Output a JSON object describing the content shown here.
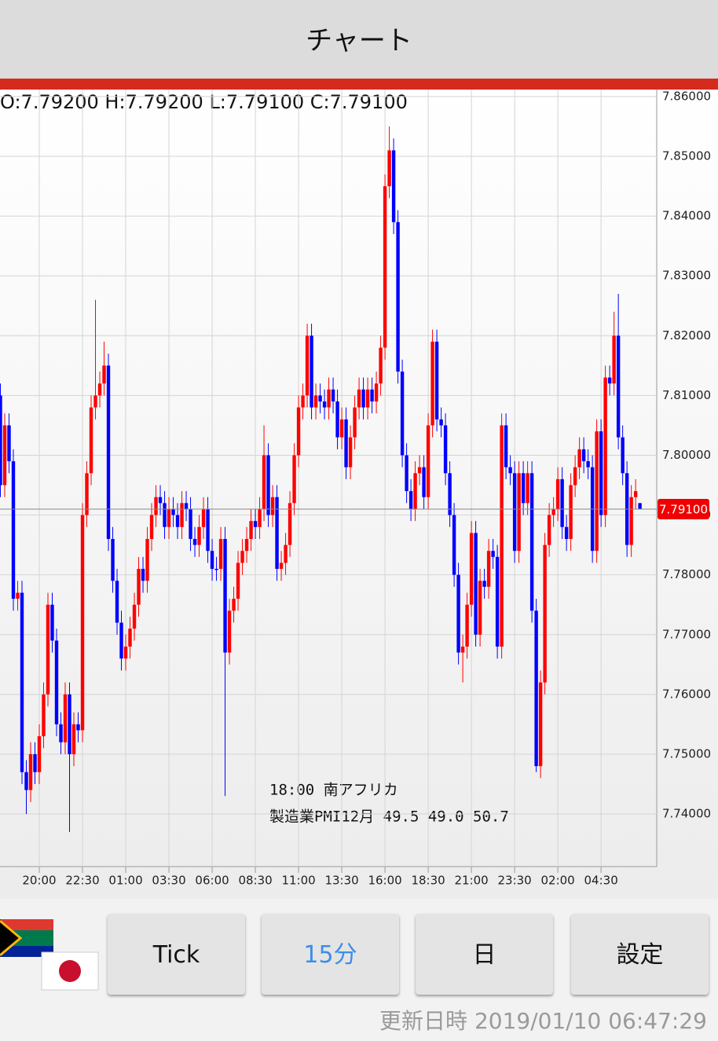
{
  "header": {
    "title": "チャート"
  },
  "chart_data": {
    "type": "candlestick",
    "ohlc_text": "O:7.79200 H:7.79200 L:7.79100 C:7.79100",
    "up_color": "#ff0000",
    "down_color": "#0000ff",
    "grid": true,
    "last_price": {
      "value": 7.791,
      "label": "7.79100"
    },
    "annotation": [
      "18:00 南アフリカ",
      "製造業PMI12月 49.5 49.0 50.7"
    ],
    "ylim": [
      7.7312,
      7.8613
    ],
    "yticks": [
      {
        "value": 7.74,
        "label": "7.74000"
      },
      {
        "value": 7.75,
        "label": "7.75000"
      },
      {
        "value": 7.76,
        "label": "7.76000"
      },
      {
        "value": 7.77,
        "label": "7.77000"
      },
      {
        "value": 7.78,
        "label": "7.78000"
      },
      {
        "value": 7.79,
        "label": "7.79000"
      },
      {
        "value": 7.8,
        "label": "7.80000"
      },
      {
        "value": 7.81,
        "label": "7.81000"
      },
      {
        "value": 7.82,
        "label": "7.82000"
      },
      {
        "value": 7.83,
        "label": "7.83000"
      },
      {
        "value": 7.84,
        "label": "7.84000"
      },
      {
        "value": 7.85,
        "label": "7.85000"
      },
      {
        "value": 7.86,
        "label": "7.86000"
      }
    ],
    "xlim": [
      -0.09,
      151.7
    ],
    "xticks": [
      {
        "value": 9,
        "label": "20:00"
      },
      {
        "value": 19,
        "label": "22:30"
      },
      {
        "value": 29,
        "label": "01:00"
      },
      {
        "value": 39,
        "label": "03:30"
      },
      {
        "value": 49,
        "label": "06:00"
      },
      {
        "value": 59,
        "label": "08:30"
      },
      {
        "value": 69,
        "label": "11:00"
      },
      {
        "value": 79,
        "label": "13:30"
      },
      {
        "value": 89,
        "label": "16:00"
      },
      {
        "value": 99,
        "label": "18:30"
      },
      {
        "value": 109,
        "label": "21:00"
      },
      {
        "value": 119,
        "label": "23:30"
      },
      {
        "value": 129,
        "label": "02:00"
      },
      {
        "value": 139,
        "label": "04:30"
      }
    ],
    "open": [
      7.81,
      7.795,
      7.805,
      7.799,
      7.776,
      7.777,
      7.747,
      7.744,
      7.75,
      7.747,
      7.753,
      7.76,
      7.775,
      7.769,
      7.755,
      7.752,
      7.76,
      7.75,
      7.755,
      7.754,
      7.79,
      7.797,
      7.808,
      7.81,
      7.812,
      7.815,
      7.786,
      7.779,
      7.772,
      7.766,
      7.768,
      7.771,
      7.775,
      7.781,
      7.779,
      7.786,
      7.79,
      7.793,
      7.792,
      7.788,
      7.791,
      7.79,
      7.788,
      7.792,
      7.791,
      7.786,
      7.785,
      7.788,
      7.791,
      7.784,
      7.781,
      7.781,
      7.786,
      7.767,
      7.774,
      7.776,
      7.782,
      7.784,
      7.786,
      7.789,
      7.788,
      7.791,
      7.8,
      7.79,
      7.793,
      7.781,
      7.782,
      7.785,
      7.792,
      7.8,
      7.808,
      7.81,
      7.82,
      7.808,
      7.81,
      7.809,
      7.808,
      7.811,
      7.809,
      7.803,
      7.806,
      7.798,
      7.803,
      7.808,
      7.811,
      7.808,
      7.811,
      7.809,
      7.812,
      7.818,
      7.845,
      7.851,
      7.839,
      7.814,
      7.8,
      7.794,
      7.791,
      7.797,
      7.798,
      7.793,
      7.805,
      7.819,
      7.806,
      7.805,
      7.797,
      7.79,
      7.78,
      7.767,
      7.768,
      7.775,
      7.787,
      7.77,
      7.779,
      7.778,
      7.784,
      7.783,
      7.768,
      7.805,
      7.798,
      7.797,
      7.784,
      7.797,
      7.792,
      7.797,
      7.774,
      7.748,
      7.762,
      7.785,
      7.79,
      7.791,
      7.796,
      7.788,
      7.786,
      7.795,
      7.798,
      7.801,
      7.799,
      7.798,
      7.784,
      7.804,
      7.79,
      7.813,
      7.812,
      7.82,
      7.803,
      7.797,
      7.785,
      7.793,
      7.792
    ],
    "high": [
      7.812,
      7.807,
      7.807,
      7.801,
      7.779,
      7.779,
      7.749,
      7.752,
      7.752,
      7.755,
      7.762,
      7.777,
      7.777,
      7.771,
      7.757,
      7.762,
      7.762,
      7.757,
      7.757,
      7.792,
      7.799,
      7.81,
      7.826,
      7.814,
      7.819,
      7.817,
      7.788,
      7.781,
      7.774,
      7.77,
      7.773,
      7.777,
      7.783,
      7.783,
      7.788,
      7.792,
      7.795,
      7.795,
      7.794,
      7.793,
      7.793,
      7.792,
      7.794,
      7.794,
      7.793,
      7.788,
      7.79,
      7.793,
      7.793,
      7.786,
      7.783,
      7.788,
      7.788,
      7.776,
      7.778,
      7.784,
      7.786,
      7.788,
      7.791,
      7.791,
      7.793,
      7.805,
      7.802,
      7.795,
      7.795,
      7.784,
      7.787,
      7.794,
      7.802,
      7.81,
      7.812,
      7.822,
      7.822,
      7.812,
      7.812,
      7.811,
      7.813,
      7.813,
      7.811,
      7.808,
      7.808,
      7.805,
      7.81,
      7.813,
      7.813,
      7.813,
      7.813,
      7.814,
      7.82,
      7.847,
      7.855,
      7.853,
      7.841,
      7.816,
      7.802,
      7.796,
      7.799,
      7.8,
      7.8,
      7.807,
      7.821,
      7.821,
      7.808,
      7.807,
      7.799,
      7.792,
      7.782,
      7.77,
      7.777,
      7.789,
      7.789,
      7.781,
      7.781,
      7.786,
      7.786,
      7.785,
      7.807,
      7.807,
      7.8,
      7.799,
      7.799,
      7.799,
      7.799,
      7.799,
      7.776,
      7.764,
      7.787,
      7.792,
      7.793,
      7.798,
      7.798,
      7.79,
      7.797,
      7.8,
      7.803,
      7.803,
      7.801,
      7.8,
      7.806,
      7.806,
      7.815,
      7.815,
      7.824,
      7.827,
      7.805,
      7.799,
      7.795,
      7.796,
      7.792
    ],
    "low": [
      7.793,
      7.793,
      7.797,
      7.774,
      7.774,
      7.745,
      7.74,
      7.742,
      7.745,
      7.745,
      7.751,
      7.758,
      7.767,
      7.753,
      7.75,
      7.75,
      7.737,
      7.748,
      7.752,
      7.752,
      7.788,
      7.795,
      7.806,
      7.808,
      7.81,
      7.784,
      7.777,
      7.77,
      7.764,
      7.764,
      7.766,
      7.769,
      7.773,
      7.777,
      7.777,
      7.784,
      7.788,
      7.79,
      7.786,
      7.786,
      7.788,
      7.786,
      7.786,
      7.789,
      7.784,
      7.783,
      7.783,
      7.786,
      7.782,
      7.779,
      7.779,
      7.779,
      7.743,
      7.765,
      7.772,
      7.774,
      7.78,
      7.782,
      7.784,
      7.786,
      7.786,
      7.789,
      7.788,
      7.788,
      7.779,
      7.779,
      7.78,
      7.783,
      7.79,
      7.798,
      7.806,
      7.808,
      7.806,
      7.806,
      7.807,
      7.806,
      7.806,
      7.807,
      7.801,
      7.801,
      7.796,
      7.796,
      7.801,
      7.806,
      7.806,
      7.806,
      7.807,
      7.807,
      7.81,
      7.816,
      7.843,
      7.837,
      7.812,
      7.798,
      7.792,
      7.789,
      7.789,
      7.795,
      7.791,
      7.791,
      7.803,
      7.804,
      7.803,
      7.795,
      7.788,
      7.778,
      7.765,
      7.762,
      7.766,
      7.773,
      7.768,
      7.768,
      7.776,
      7.776,
      7.781,
      7.766,
      7.766,
      7.796,
      7.795,
      7.782,
      7.782,
      7.79,
      7.79,
      7.772,
      7.747,
      7.746,
      7.76,
      7.783,
      7.788,
      7.789,
      7.786,
      7.784,
      7.784,
      7.793,
      7.796,
      7.797,
      7.796,
      7.782,
      7.782,
      7.788,
      7.788,
      7.81,
      7.81,
      7.801,
      7.795,
      7.783,
      7.783,
      7.791,
      7.791
    ],
    "close": [
      7.795,
      7.805,
      7.799,
      7.776,
      7.777,
      7.747,
      7.744,
      7.75,
      7.747,
      7.753,
      7.76,
      7.775,
      7.769,
      7.755,
      7.752,
      7.76,
      7.75,
      7.755,
      7.754,
      7.79,
      7.797,
      7.808,
      7.81,
      7.812,
      7.815,
      7.786,
      7.779,
      7.772,
      7.766,
      7.768,
      7.771,
      7.775,
      7.781,
      7.779,
      7.786,
      7.79,
      7.793,
      7.792,
      7.788,
      7.791,
      7.79,
      7.788,
      7.792,
      7.791,
      7.786,
      7.785,
      7.788,
      7.791,
      7.784,
      7.781,
      7.781,
      7.786,
      7.767,
      7.774,
      7.776,
      7.782,
      7.784,
      7.786,
      7.789,
      7.788,
      7.791,
      7.8,
      7.79,
      7.793,
      7.781,
      7.782,
      7.785,
      7.792,
      7.8,
      7.808,
      7.81,
      7.82,
      7.808,
      7.81,
      7.809,
      7.808,
      7.811,
      7.809,
      7.803,
      7.806,
      7.798,
      7.803,
      7.808,
      7.811,
      7.808,
      7.811,
      7.809,
      7.812,
      7.818,
      7.845,
      7.851,
      7.839,
      7.814,
      7.8,
      7.794,
      7.791,
      7.797,
      7.798,
      7.793,
      7.805,
      7.819,
      7.806,
      7.805,
      7.797,
      7.79,
      7.78,
      7.767,
      7.768,
      7.775,
      7.787,
      7.77,
      7.779,
      7.778,
      7.784,
      7.783,
      7.768,
      7.805,
      7.798,
      7.797,
      7.784,
      7.797,
      7.792,
      7.797,
      7.774,
      7.748,
      7.762,
      7.785,
      7.79,
      7.791,
      7.796,
      7.788,
      7.786,
      7.795,
      7.798,
      7.801,
      7.799,
      7.798,
      7.784,
      7.804,
      7.79,
      7.813,
      7.812,
      7.82,
      7.803,
      7.797,
      7.785,
      7.793,
      7.794,
      7.791
    ]
  },
  "buttons": [
    "Tick",
    "15分",
    "日",
    "設定"
  ],
  "footer": {
    "label": "更新日時",
    "timestamp": "2019/01/10 06:47:29"
  }
}
